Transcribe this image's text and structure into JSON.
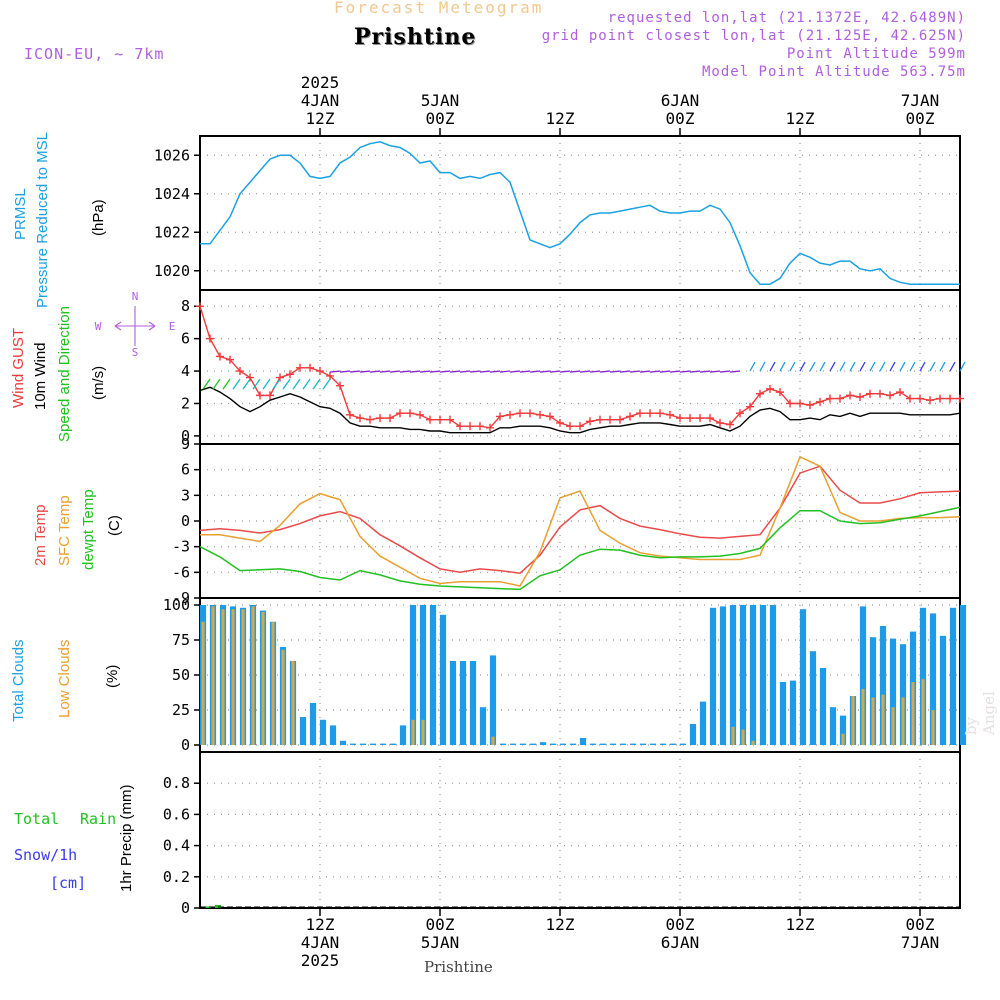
{
  "header": {
    "title": "Forecast Meteogram",
    "place": "Prishtine",
    "model": "ICON-EU, ~ 7km",
    "requested": "requested lon,lat (21.1372E, 42.6489N)",
    "grid_point": "grid point closest lon,lat (21.125E, 42.625N)",
    "point_altitude": "Point Altitude 599m",
    "model_altitude": "Model Point Altitude 563.75m",
    "footer_place": "Prishtine",
    "watermark": "by Angel"
  },
  "time_axis": {
    "hours_start": 0,
    "hours_end": 76,
    "top_ticks": [
      {
        "h": 12,
        "lines": [
          "2025",
          "4JAN",
          "12Z"
        ]
      },
      {
        "h": 24,
        "lines": [
          "5JAN",
          "00Z"
        ]
      },
      {
        "h": 36,
        "lines": [
          "12Z"
        ]
      },
      {
        "h": 48,
        "lines": [
          "6JAN",
          "00Z"
        ]
      },
      {
        "h": 60,
        "lines": [
          "12Z"
        ]
      },
      {
        "h": 72,
        "lines": [
          "7JAN",
          "00Z"
        ]
      }
    ],
    "bottom_ticks": [
      {
        "h": 12,
        "lines": [
          "12Z",
          "4JAN",
          "2025"
        ]
      },
      {
        "h": 24,
        "lines": [
          "00Z",
          "5JAN"
        ]
      },
      {
        "h": 36,
        "lines": [
          "12Z"
        ]
      },
      {
        "h": 48,
        "lines": [
          "00Z",
          "6JAN"
        ]
      },
      {
        "h": 60,
        "lines": [
          "12Z"
        ]
      },
      {
        "h": 72,
        "lines": [
          "00Z",
          "7JAN"
        ]
      }
    ]
  },
  "panel_labels": {
    "pressure": {
      "lines": [
        "PRMSL",
        "Pressure Reduced to MSL"
      ],
      "unit": "(hPa)"
    },
    "wind": {
      "gust": "Wind GUST",
      "wind10": "10m Wind",
      "dir": "Speed and Direction",
      "unit": "(m/s)",
      "compass_n": "N",
      "compass_s": "S",
      "compass_w": "W",
      "compass_e": "E"
    },
    "temp": {
      "t2m": "2m Temp",
      "sfc": "SFC Temp",
      "dewpt": "dewpt Temp",
      "unit": "(C)"
    },
    "clouds": {
      "total": "Total Clouds",
      "low": "Low Clouds",
      "unit": "(%)"
    },
    "precip": {
      "total": "Total",
      "rain": "Rain",
      "snow": "Snow/1h",
      "cm": "[cm]",
      "unit": "1hr Precip (mm)"
    }
  },
  "colors": {
    "pressure": "#1ba1e2",
    "gust": "#ee3a3a",
    "wind10": "#000000",
    "t2m": "#e84a4a",
    "sfc": "#e8a030",
    "dewpt": "#22c022",
    "total_clouds": "#1e9be8",
    "low_clouds": "#d4a84a",
    "precip": "#22c022",
    "label_purple": "#b05ee0",
    "label_blue": "#1ba1e2",
    "label_red": "#ee3a3a",
    "label_orange": "#e8a030",
    "label_green": "#22c022",
    "label_snow": "#3a3ae8"
  },
  "chart_data": [
    {
      "id": "pressure",
      "type": "line",
      "ylabel": "Pressure Reduced to MSL (hPa)",
      "ylim": [
        1019,
        1027
      ],
      "yticks": [
        1020,
        1022,
        1024,
        1026
      ],
      "series": [
        {
          "name": "PRMSL",
          "x": [
            0,
            1,
            2,
            3,
            4,
            5,
            6,
            7,
            8,
            9,
            10,
            11,
            12,
            13,
            14,
            15,
            16,
            17,
            18,
            19,
            20,
            21,
            22,
            23,
            24,
            25,
            26,
            27,
            28,
            29,
            30,
            31,
            32,
            33,
            34,
            35,
            36,
            37,
            38,
            39,
            40,
            41,
            42,
            43,
            44,
            45,
            46,
            47,
            48,
            49,
            50,
            51,
            52,
            53,
            54,
            55,
            56,
            57,
            58,
            59,
            60,
            61,
            62,
            63,
            64,
            65,
            66,
            67,
            68,
            69,
            70,
            71,
            72,
            73,
            74,
            75,
            76
          ],
          "values": [
            1021.4,
            1021.4,
            1022.1,
            1022.8,
            1024.0,
            1024.6,
            1025.2,
            1025.8,
            1026.0,
            1026.0,
            1025.6,
            1024.9,
            1024.8,
            1024.9,
            1025.6,
            1025.9,
            1026.4,
            1026.6,
            1026.7,
            1026.5,
            1026.4,
            1026.1,
            1025.6,
            1025.7,
            1025.1,
            1025.1,
            1024.8,
            1024.9,
            1024.8,
            1025.0,
            1025.1,
            1024.6,
            1023.1,
            1021.6,
            1021.4,
            1021.2,
            1021.4,
            1021.9,
            1022.5,
            1022.9,
            1023.0,
            1023.0,
            1023.1,
            1023.2,
            1023.3,
            1023.4,
            1023.1,
            1023.0,
            1023.0,
            1023.1,
            1023.1,
            1023.4,
            1023.2,
            1022.5,
            1021.3,
            1019.9,
            1019.3,
            1019.3,
            1019.6,
            1020.4,
            1020.9,
            1020.7,
            1020.4,
            1020.3,
            1020.5,
            1020.5,
            1020.1,
            1020.0,
            1020.1,
            1019.6,
            1019.4,
            1019.3,
            1019.3,
            1019.3,
            1019.3,
            1019.3,
            1019.3
          ]
        }
      ]
    },
    {
      "id": "wind",
      "type": "line",
      "ylabel": "Wind Speed (m/s)",
      "ylim": [
        -0.5,
        9
      ],
      "yticks": [
        0,
        2,
        4,
        6,
        8
      ],
      "x": [
        0,
        1,
        2,
        3,
        4,
        5,
        6,
        7,
        8,
        9,
        10,
        11,
        12,
        13,
        14,
        15,
        16,
        17,
        18,
        19,
        20,
        21,
        22,
        23,
        24,
        25,
        26,
        27,
        28,
        29,
        30,
        31,
        32,
        33,
        34,
        35,
        36,
        37,
        38,
        39,
        40,
        41,
        42,
        43,
        44,
        45,
        46,
        47,
        48,
        49,
        50,
        51,
        52,
        53,
        54,
        55,
        56,
        57,
        58,
        59,
        60,
        61,
        62,
        63,
        64,
        65,
        66,
        67,
        68,
        69,
        70,
        71,
        72,
        73,
        74,
        75,
        76
      ],
      "series": [
        {
          "name": "Wind GUST",
          "values": [
            8.0,
            6.0,
            4.9,
            4.7,
            4.0,
            3.6,
            2.5,
            2.5,
            3.6,
            3.8,
            4.2,
            4.2,
            4.0,
            3.7,
            3.1,
            1.3,
            1.1,
            1.0,
            1.1,
            1.1,
            1.4,
            1.4,
            1.3,
            1.0,
            1.0,
            1.0,
            0.6,
            0.6,
            0.6,
            0.5,
            1.2,
            1.3,
            1.4,
            1.4,
            1.3,
            1.2,
            0.8,
            0.6,
            0.6,
            0.9,
            1.0,
            1.0,
            1.0,
            1.2,
            1.4,
            1.4,
            1.4,
            1.3,
            1.1,
            1.1,
            1.1,
            1.1,
            0.8,
            0.7,
            1.4,
            1.8,
            2.6,
            2.9,
            2.7,
            2.0,
            2.0,
            1.9,
            2.1,
            2.3,
            2.3,
            2.5,
            2.4,
            2.6,
            2.6,
            2.5,
            2.7,
            2.3,
            2.3,
            2.2,
            2.3,
            2.3,
            2.3
          ]
        },
        {
          "name": "10m Wind",
          "values": [
            2.8,
            3.0,
            2.7,
            2.3,
            1.8,
            1.5,
            1.8,
            2.2,
            2.4,
            2.6,
            2.4,
            2.1,
            1.8,
            1.7,
            1.4,
            0.8,
            0.6,
            0.6,
            0.5,
            0.5,
            0.5,
            0.4,
            0.4,
            0.3,
            0.3,
            0.2,
            0.2,
            0.2,
            0.2,
            0.2,
            0.5,
            0.5,
            0.6,
            0.6,
            0.6,
            0.5,
            0.3,
            0.2,
            0.2,
            0.4,
            0.5,
            0.6,
            0.6,
            0.7,
            0.8,
            0.8,
            0.8,
            0.7,
            0.6,
            0.6,
            0.6,
            0.7,
            0.5,
            0.3,
            0.6,
            1.2,
            1.6,
            1.7,
            1.5,
            1.0,
            1.0,
            1.1,
            1.0,
            1.3,
            1.2,
            1.4,
            1.2,
            1.4,
            1.4,
            1.4,
            1.4,
            1.3,
            1.3,
            1.3,
            1.3,
            1.3,
            1.4
          ]
        }
      ]
    },
    {
      "id": "temperature",
      "type": "line",
      "ylabel": "Temperature (C)",
      "ylim": [
        -9,
        9
      ],
      "yticks": [
        -9,
        -6,
        -3,
        0,
        3,
        6,
        9
      ],
      "x": [
        0,
        2,
        4,
        6,
        8,
        10,
        12,
        14,
        16,
        18,
        20,
        22,
        24,
        26,
        28,
        30,
        32,
        34,
        36,
        38,
        40,
        42,
        44,
        46,
        48,
        50,
        52,
        54,
        56,
        58,
        60,
        62,
        64,
        66,
        68,
        70,
        72,
        74,
        76
      ],
      "series": [
        {
          "name": "2m Temp",
          "values": [
            -1.1,
            -0.9,
            -1.1,
            -1.4,
            -1.0,
            -0.3,
            0.6,
            1.1,
            0.3,
            -1.6,
            -2.9,
            -4.3,
            -5.6,
            -6.0,
            -5.6,
            -5.8,
            -6.1,
            -4.0,
            -0.7,
            1.3,
            1.8,
            0.3,
            -0.6,
            -1.0,
            -1.5,
            -1.9,
            -2.0,
            -1.8,
            -1.6,
            1.5,
            5.6,
            6.4,
            3.6,
            2.1,
            2.1,
            2.6,
            3.3,
            3.4,
            3.5
          ]
        },
        {
          "name": "SFC Temp",
          "values": [
            -1.6,
            -1.6,
            -2.0,
            -2.4,
            -0.5,
            2.0,
            3.2,
            2.5,
            -1.8,
            -4.1,
            -5.4,
            -6.7,
            -7.3,
            -7.1,
            -7.1,
            -7.1,
            -7.6,
            -3.6,
            2.7,
            3.5,
            -1.1,
            -2.6,
            -3.7,
            -4.1,
            -4.3,
            -4.5,
            -4.5,
            -4.5,
            -4.0,
            1.5,
            7.5,
            6.4,
            1.0,
            0.0,
            0.0,
            0.3,
            0.4,
            0.4,
            0.5
          ]
        },
        {
          "name": "dewpt Temp",
          "values": [
            -3.0,
            -4.2,
            -5.8,
            -5.7,
            -5.6,
            -5.9,
            -6.6,
            -6.9,
            -5.8,
            -6.3,
            -7.0,
            -7.4,
            -7.6,
            -7.7,
            -7.8,
            -7.9,
            -8.0,
            -6.4,
            -5.7,
            -4.0,
            -3.3,
            -3.4,
            -4.0,
            -4.3,
            -4.2,
            -4.2,
            -4.1,
            -3.8,
            -3.2,
            -0.8,
            1.2,
            1.2,
            0.0,
            -0.3,
            -0.2,
            0.2,
            0.6,
            1.1,
            1.6
          ]
        }
      ]
    },
    {
      "id": "clouds",
      "type": "bar",
      "ylabel": "Clouds (%)",
      "ylim": [
        -5,
        105
      ],
      "yticks": [
        0,
        25,
        50,
        75,
        100
      ],
      "x": [
        0,
        1,
        2,
        3,
        4,
        5,
        6,
        7,
        8,
        9,
        10,
        11,
        12,
        13,
        14,
        15,
        16,
        17,
        18,
        19,
        20,
        21,
        22,
        23,
        24,
        25,
        26,
        27,
        28,
        29,
        30,
        31,
        32,
        33,
        34,
        35,
        36,
        37,
        38,
        39,
        40,
        41,
        42,
        43,
        44,
        45,
        46,
        47,
        48,
        49,
        50,
        51,
        52,
        53,
        54,
        55,
        56,
        57,
        58,
        59,
        60,
        61,
        62,
        63,
        64,
        65,
        66,
        67,
        68,
        69,
        70,
        71,
        72,
        73,
        74,
        75,
        76
      ],
      "series": [
        {
          "name": "Total Clouds",
          "values": [
            100,
            100,
            100,
            99,
            98,
            100,
            96,
            88,
            70,
            60,
            20,
            30,
            18,
            14,
            3,
            1,
            1,
            1,
            1,
            1,
            14,
            100,
            100,
            100,
            93,
            60,
            60,
            60,
            27,
            64,
            1,
            1,
            1,
            1,
            2,
            1,
            1,
            1,
            5,
            1,
            1,
            1,
            1,
            1,
            1,
            1,
            1,
            1,
            1,
            15,
            31,
            98,
            99,
            100,
            100,
            100,
            100,
            100,
            45,
            46,
            97,
            67,
            55,
            27,
            21,
            35,
            99,
            77,
            85,
            76,
            72,
            81,
            98,
            94,
            78,
            98,
            100
          ]
        },
        {
          "name": "Low Clouds",
          "values": [
            88,
            99,
            97,
            97,
            97,
            99,
            95,
            88,
            68,
            60,
            0,
            0,
            0,
            0,
            0,
            0,
            0,
            0,
            0,
            0,
            0,
            18,
            18,
            0,
            0,
            0,
            0,
            0,
            0,
            6,
            0,
            0,
            0,
            0,
            0,
            0,
            0,
            0,
            0,
            0,
            0,
            0,
            0,
            0,
            0,
            0,
            0,
            0,
            0,
            0,
            0,
            0,
            0,
            13,
            11,
            3,
            0,
            0,
            0,
            0,
            0,
            0,
            0,
            0,
            8,
            35,
            40,
            34,
            36,
            27,
            34,
            45,
            47,
            25,
            0,
            0,
            0
          ]
        }
      ]
    },
    {
      "id": "precip",
      "type": "bar",
      "ylabel": "1hr Precip (mm)",
      "ylim": [
        0,
        1
      ],
      "yticks": [
        0,
        0.2,
        0.4,
        0.6,
        0.8
      ],
      "x": [
        0,
        1
      ],
      "series": [
        {
          "name": "Total Rain",
          "values": [
            0.01,
            0.02
          ]
        }
      ]
    }
  ]
}
